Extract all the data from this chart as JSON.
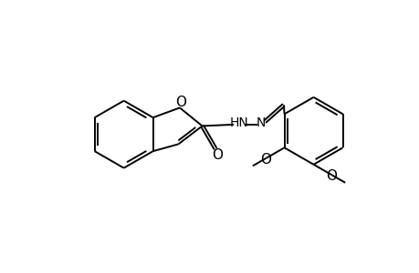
{
  "bg_color": "#ffffff",
  "line_color": "#000000",
  "lw": 1.4,
  "dbo": 0.05,
  "fs": 10,
  "figsize": [
    4.6,
    3.0
  ],
  "dpi": 100,
  "xlim": [
    0,
    460
  ],
  "ylim": [
    0,
    300
  ]
}
